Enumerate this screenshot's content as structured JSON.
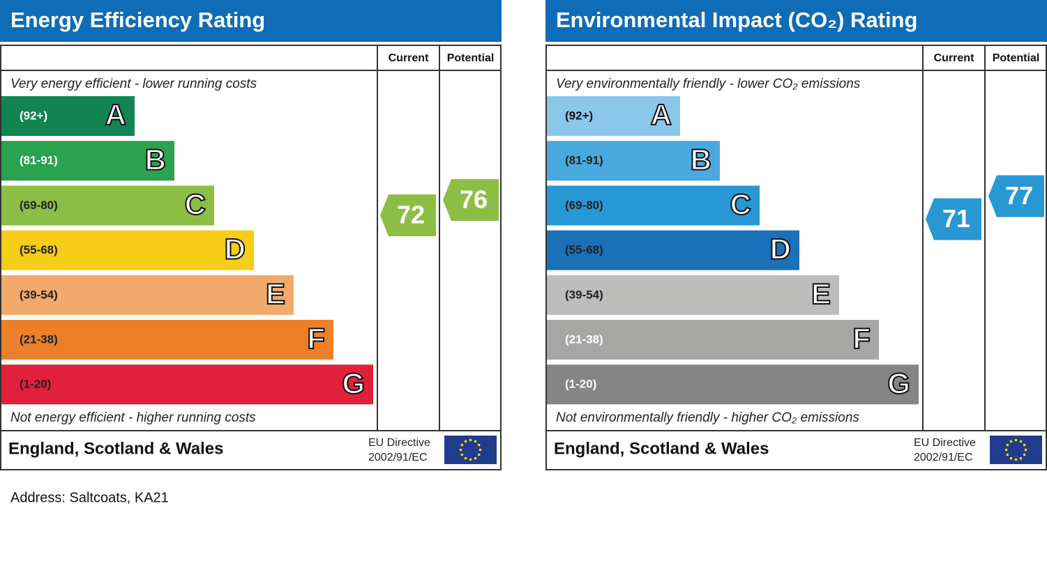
{
  "panels": [
    {
      "title": "Energy Efficiency Rating",
      "columns": [
        "Current",
        "Potential"
      ],
      "top_note": "Very energy efficient - lower running costs",
      "bands": [
        {
          "range": "(92+)",
          "letter": "A",
          "color": "#128452",
          "label_color": "#ffffff"
        },
        {
          "range": "(81-91)",
          "letter": "B",
          "color": "#2ba24f",
          "label_color": "#ffffff"
        },
        {
          "range": "(69-80)",
          "letter": "C",
          "color": "#8cbe45",
          "label_color": "#222222"
        },
        {
          "range": "(55-68)",
          "letter": "D",
          "color": "#f6cd17",
          "label_color": "#222222"
        },
        {
          "range": "(39-54)",
          "letter": "E",
          "color": "#f2a96c",
          "label_color": "#222222"
        },
        {
          "range": "(21-38)",
          "letter": "F",
          "color": "#ec7f2a",
          "label_color": "#222222"
        },
        {
          "range": "(1-20)",
          "letter": "G",
          "color": "#e1203c",
          "label_color": "#222222"
        }
      ],
      "bottom_note": "Not energy efficient - higher running costs",
      "country": "England, Scotland & Wales",
      "directive": [
        "EU Directive",
        "2002/91/EC"
      ],
      "current": 72,
      "potential": 76,
      "arrow_color": "#8cbe45"
    },
    {
      "title": "Environmental Impact (CO₂) Rating",
      "columns": [
        "Current",
        "Potential"
      ],
      "top_note": "Very environmentally friendly - lower CO₂ emissions",
      "bands": [
        {
          "range": "(92+)",
          "letter": "A",
          "color": "#8bc7ea",
          "label_color": "#111111"
        },
        {
          "range": "(81-91)",
          "letter": "B",
          "color": "#49a9de",
          "label_color": "#222222"
        },
        {
          "range": "(69-80)",
          "letter": "C",
          "color": "#2898d4",
          "label_color": "#222222"
        },
        {
          "range": "(55-68)",
          "letter": "D",
          "color": "#1b70b8",
          "label_color": "#222222"
        },
        {
          "range": "(39-54)",
          "letter": "E",
          "color": "#bdbdbc",
          "label_color": "#222222"
        },
        {
          "range": "(21-38)",
          "letter": "F",
          "color": "#a6a6a5",
          "label_color": "#ffffff"
        },
        {
          "range": "(1-20)",
          "letter": "G",
          "color": "#858585",
          "label_color": "#ffffff"
        }
      ],
      "bottom_note": "Not environmentally friendly - higher CO₂ emissions",
      "country": "England, Scotland & Wales",
      "directive": [
        "EU Directive",
        "2002/91/EC"
      ],
      "current": 71,
      "potential": 77,
      "arrow_color": "#2898d4"
    }
  ],
  "address": "Address: Saltcoats, KA21"
}
